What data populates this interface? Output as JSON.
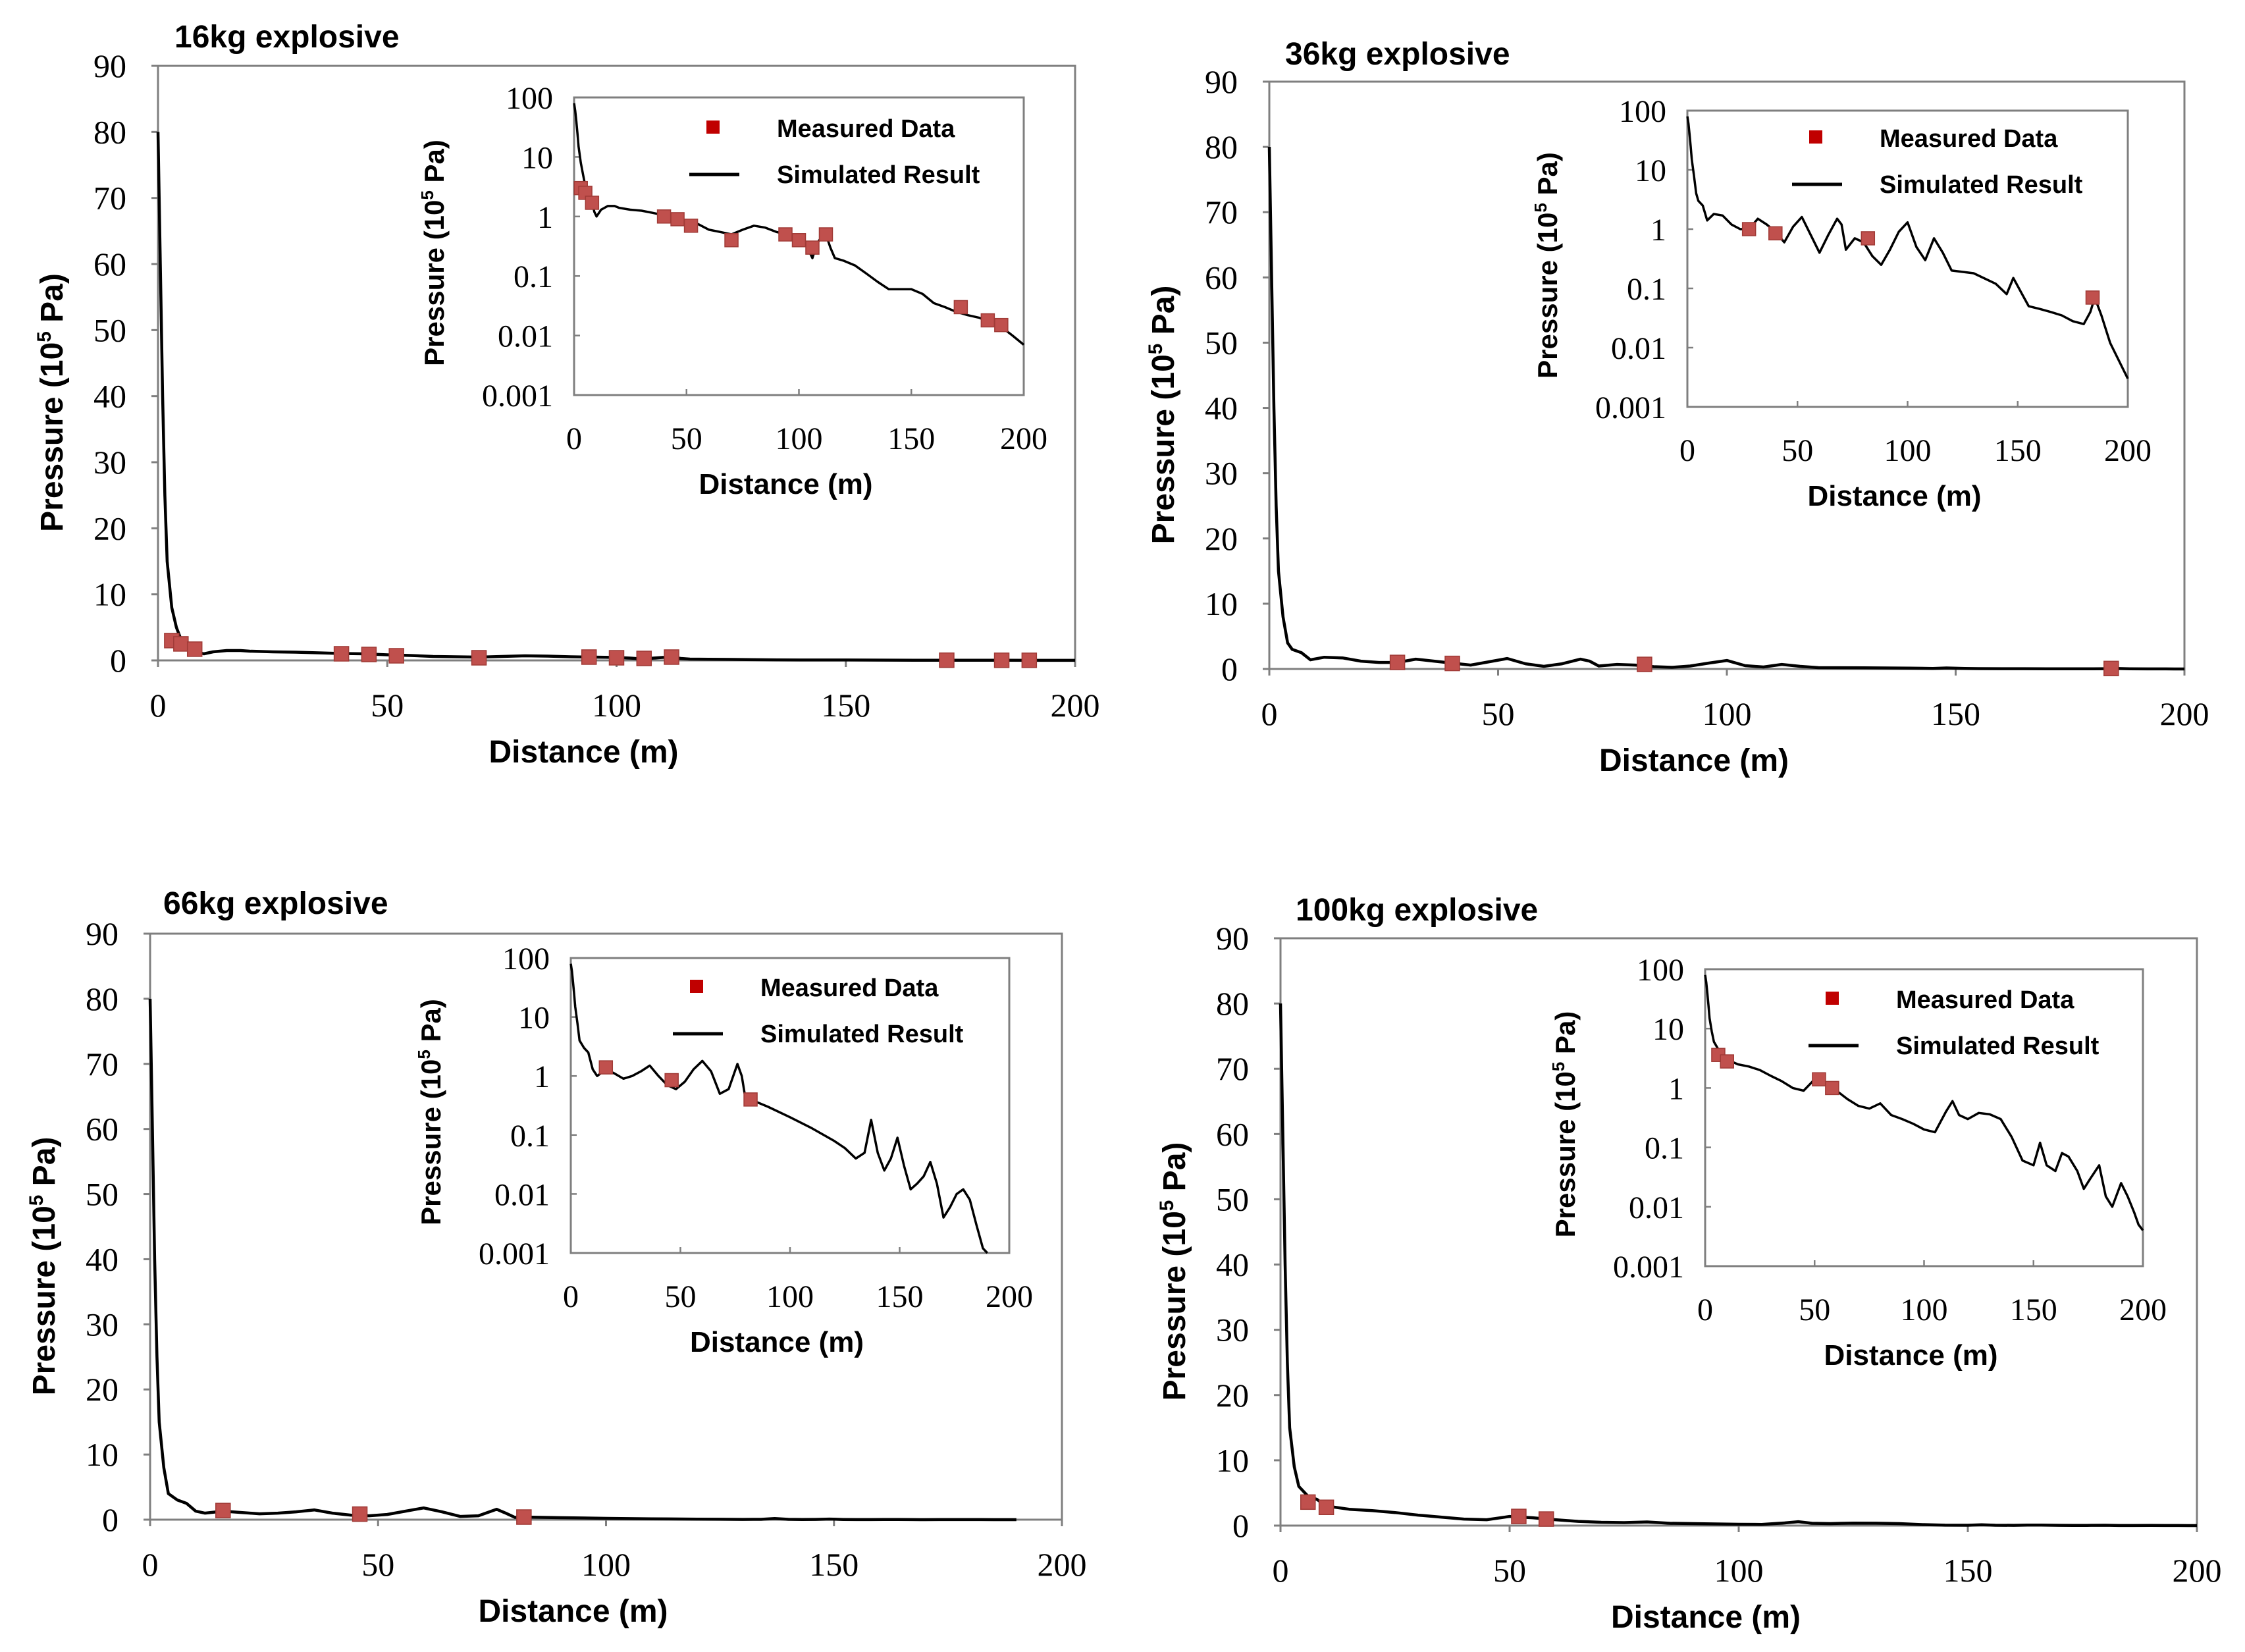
{
  "figure": {
    "colors": {
      "background": "#ffffff",
      "frame": "#7f7f7f",
      "line": "#000000",
      "marker": "#c0504d",
      "marker_edge": "#a03a36",
      "legend_marker": "#c00000"
    }
  },
  "chart_data": [
    {
      "type": "line",
      "title": "16kg explosive",
      "xlabel": "Distance (m)",
      "ylabel": "Pressure (10⁵ Pa)",
      "xlim": [
        0,
        200
      ],
      "ylim": [
        0,
        90
      ],
      "xticks": [
        "0",
        "50",
        "100",
        "150",
        "200"
      ],
      "yticks": [
        "0",
        "10",
        "20",
        "30",
        "40",
        "50",
        "60",
        "70",
        "80",
        "90"
      ],
      "series": [
        {
          "name": "Simulated Result",
          "x": [
            0,
            0.5,
            1,
            1.5,
            2,
            3,
            4,
            5,
            6,
            7,
            8,
            9,
            10,
            12,
            15,
            18,
            20,
            25,
            30,
            35,
            40,
            45,
            50,
            55,
            60,
            65,
            70,
            75,
            80,
            85,
            90,
            95,
            100,
            103,
            106,
            108,
            110,
            112,
            114,
            116,
            120,
            125,
            130,
            135,
            140,
            145,
            150,
            155,
            160,
            165,
            170,
            175,
            180,
            185,
            190,
            195,
            200
          ],
          "y": [
            80,
            60,
            40,
            25,
            15,
            8,
            5,
            3.2,
            2.5,
            2,
            1.8,
            1.2,
            1.0,
            1.3,
            1.5,
            1.5,
            1.4,
            1.3,
            1.25,
            1.15,
            1.05,
            1.0,
            0.85,
            0.75,
            0.6,
            0.55,
            0.5,
            0.6,
            0.7,
            0.65,
            0.55,
            0.5,
            0.45,
            0.35,
            0.2,
            0.35,
            0.45,
            0.5,
            0.3,
            0.2,
            0.18,
            0.15,
            0.11,
            0.08,
            0.06,
            0.06,
            0.06,
            0.05,
            0.035,
            0.03,
            0.025,
            0.022,
            0.02,
            0.017,
            0.014,
            0.01,
            0.007
          ]
        },
        {
          "name": "Measured Data",
          "x": [
            3,
            5,
            8,
            40,
            46,
            52,
            70,
            94,
            100,
            106,
            112,
            172,
            184,
            190
          ],
          "y": [
            3.0,
            2.5,
            1.7,
            1.0,
            0.9,
            0.7,
            0.4,
            0.5,
            0.4,
            0.3,
            0.5,
            0.03,
            0.018,
            0.015
          ]
        }
      ],
      "inset": {
        "scale": "log",
        "xlabel": "Distance  (m)",
        "ylabel": "Pressure (10⁵ Pa)",
        "xlim": [
          0,
          200
        ],
        "ylim": [
          0.001,
          100
        ],
        "xticks": [
          "0",
          "50",
          "100",
          "150",
          "200"
        ],
        "yticks": [
          "100",
          "10",
          "1",
          "0.1",
          "0.01",
          "0.001"
        ],
        "legend": [
          "Measured Data",
          "Simulated Result"
        ]
      }
    },
    {
      "type": "line",
      "title": "36kg explosive",
      "xlabel": "Distance (m)",
      "ylabel": "Pressure (10⁵ Pa)",
      "xlim": [
        0,
        200
      ],
      "ylim": [
        0,
        90
      ],
      "xticks": [
        "0",
        "50",
        "100",
        "150",
        "200"
      ],
      "yticks": [
        "0",
        "10",
        "20",
        "30",
        "40",
        "50",
        "60",
        "70",
        "80",
        "90"
      ],
      "series": [
        {
          "name": "Simulated Result",
          "x": [
            0,
            0.5,
            1,
            1.5,
            2,
            3,
            4,
            5,
            7,
            9,
            12,
            16,
            20,
            24,
            28,
            32,
            36,
            40,
            44,
            48,
            52,
            56,
            60,
            64,
            68,
            70,
            72,
            76,
            80,
            84,
            88,
            92,
            96,
            100,
            104,
            108,
            112,
            116,
            120,
            130,
            140,
            145,
            148,
            152,
            155,
            160,
            165,
            170,
            175,
            180,
            183,
            185,
            188,
            192,
            196,
            200
          ],
          "y": [
            80,
            60,
            40,
            25,
            15,
            8,
            4,
            3,
            2.5,
            1.4,
            1.8,
            1.7,
            1.2,
            1.0,
            1.0,
            1.5,
            1.2,
            0.9,
            0.6,
            1.1,
            1.6,
            0.8,
            0.4,
            0.8,
            1.5,
            1.2,
            0.45,
            0.7,
            0.6,
            0.35,
            0.25,
            0.45,
            0.9,
            1.3,
            0.5,
            0.3,
            0.7,
            0.4,
            0.2,
            0.18,
            0.12,
            0.08,
            0.15,
            0.08,
            0.05,
            0.045,
            0.04,
            0.035,
            0.028,
            0.025,
            0.04,
            0.07,
            0.035,
            0.012,
            0.006,
            0.003
          ]
        },
        {
          "name": "Measured Data",
          "x": [
            28,
            40,
            82,
            184
          ],
          "y": [
            1.0,
            0.85,
            0.7,
            0.07
          ]
        }
      ],
      "inset": {
        "scale": "log",
        "xlabel": "Distance  (m)",
        "ylabel": "Pressure (10⁵ Pa)",
        "xlim": [
          0,
          200
        ],
        "ylim": [
          0.001,
          100
        ],
        "xticks": [
          "0",
          "50",
          "100",
          "150",
          "200"
        ],
        "yticks": [
          "100",
          "10",
          "1",
          "0.1",
          "0.01",
          "0.001"
        ],
        "legend": [
          "Measured Data",
          "Simulated Result"
        ]
      }
    },
    {
      "type": "line",
      "title": "66kg explosive",
      "xlabel": "Distance (m)",
      "ylabel": "Pressure (10⁵ Pa)",
      "xlim": [
        0,
        200
      ],
      "ylim": [
        0,
        90
      ],
      "xticks": [
        "0",
        "50",
        "100",
        "150",
        "200"
      ],
      "yticks": [
        "0",
        "10",
        "20",
        "30",
        "40",
        "50",
        "60",
        "70",
        "80",
        "90"
      ],
      "series": [
        {
          "name": "Simulated Result",
          "x": [
            0,
            0.5,
            1,
            1.5,
            2,
            3,
            4,
            6,
            8,
            10,
            12,
            16,
            20,
            24,
            28,
            32,
            36,
            40,
            44,
            48,
            52,
            56,
            60,
            64,
            68,
            72,
            76,
            78,
            80,
            82,
            90,
            100,
            110,
            120,
            125,
            130,
            134,
            137,
            140,
            143,
            146,
            149,
            152,
            155,
            158,
            161,
            164,
            167,
            170,
            173,
            176,
            179,
            182,
            185,
            188,
            190
          ],
          "y": [
            80,
            60,
            40,
            25,
            15,
            8,
            4,
            3,
            2.5,
            1.3,
            1.0,
            1.3,
            1.1,
            0.9,
            1.0,
            1.2,
            1.5,
            1.0,
            0.7,
            0.6,
            0.8,
            1.3,
            1.8,
            1.2,
            0.5,
            0.6,
            1.6,
            1.0,
            0.35,
            0.4,
            0.3,
            0.2,
            0.13,
            0.08,
            0.06,
            0.04,
            0.05,
            0.18,
            0.05,
            0.025,
            0.04,
            0.09,
            0.03,
            0.012,
            0.015,
            0.02,
            0.035,
            0.015,
            0.004,
            0.006,
            0.01,
            0.012,
            0.008,
            0.003,
            0.0012,
            0.001
          ]
        },
        {
          "name": "Measured Data",
          "x": [
            16,
            46,
            82
          ],
          "y": [
            1.4,
            0.85,
            0.4
          ]
        }
      ],
      "inset": {
        "scale": "log",
        "xlabel": "Distance  (m)",
        "ylabel": "Pressure (10⁵ Pa)",
        "xlim": [
          0,
          200
        ],
        "ylim": [
          0.001,
          100
        ],
        "xticks": [
          "0",
          "50",
          "100",
          "150",
          "200"
        ],
        "yticks": [
          "100",
          "10",
          "1",
          "0.1",
          "0.01",
          "0.001"
        ],
        "legend": [
          "Measured Data",
          "Simulated Result"
        ]
      }
    },
    {
      "type": "line",
      "title": "100kg explosive",
      "xlabel": "Distance (m)",
      "ylabel": "Pressure (10⁵ Pa)",
      "xlim": [
        0,
        200
      ],
      "ylim": [
        0,
        90
      ],
      "xticks": [
        "0",
        "50",
        "100",
        "150",
        "200"
      ],
      "yticks": [
        "0",
        "10",
        "20",
        "30",
        "40",
        "50",
        "60",
        "70",
        "80",
        "90"
      ],
      "series": [
        {
          "name": "Simulated Result",
          "x": [
            0,
            0.5,
            1,
            1.5,
            2,
            3,
            4,
            6,
            8,
            10,
            15,
            20,
            25,
            30,
            35,
            40,
            45,
            50,
            55,
            60,
            65,
            70,
            75,
            80,
            85,
            90,
            95,
            100,
            105,
            110,
            113,
            116,
            120,
            125,
            130,
            135,
            140,
            145,
            150,
            153,
            156,
            160,
            163,
            166,
            170,
            173,
            176,
            180,
            183,
            186,
            190,
            193,
            196,
            198,
            200
          ],
          "y": [
            80,
            60,
            40,
            25,
            15,
            9,
            6,
            4.5,
            4,
            3,
            2.5,
            2.3,
            2.0,
            1.6,
            1.3,
            1.0,
            0.9,
            1.4,
            1.2,
            0.9,
            0.65,
            0.5,
            0.45,
            0.55,
            0.35,
            0.3,
            0.25,
            0.2,
            0.18,
            0.4,
            0.6,
            0.35,
            0.3,
            0.38,
            0.36,
            0.3,
            0.15,
            0.06,
            0.05,
            0.12,
            0.05,
            0.04,
            0.08,
            0.07,
            0.04,
            0.02,
            0.03,
            0.05,
            0.015,
            0.01,
            0.025,
            0.015,
            0.008,
            0.005,
            0.004
          ]
        },
        {
          "name": "Measured Data",
          "x": [
            6,
            10,
            52,
            58
          ],
          "y": [
            3.6,
            2.8,
            1.4,
            1.0
          ]
        }
      ],
      "inset": {
        "scale": "log",
        "xlabel": "Distance  (m)",
        "ylabel": "Pressure (10⁵ Pa)",
        "xlim": [
          0,
          200
        ],
        "ylim": [
          0.001,
          100
        ],
        "xticks": [
          "0",
          "50",
          "100",
          "150",
          "200"
        ],
        "yticks": [
          "100",
          "10",
          "1",
          "0.1",
          "0.01",
          "0.001"
        ],
        "legend": [
          "Measured Data",
          "Simulated Result"
        ]
      }
    }
  ]
}
